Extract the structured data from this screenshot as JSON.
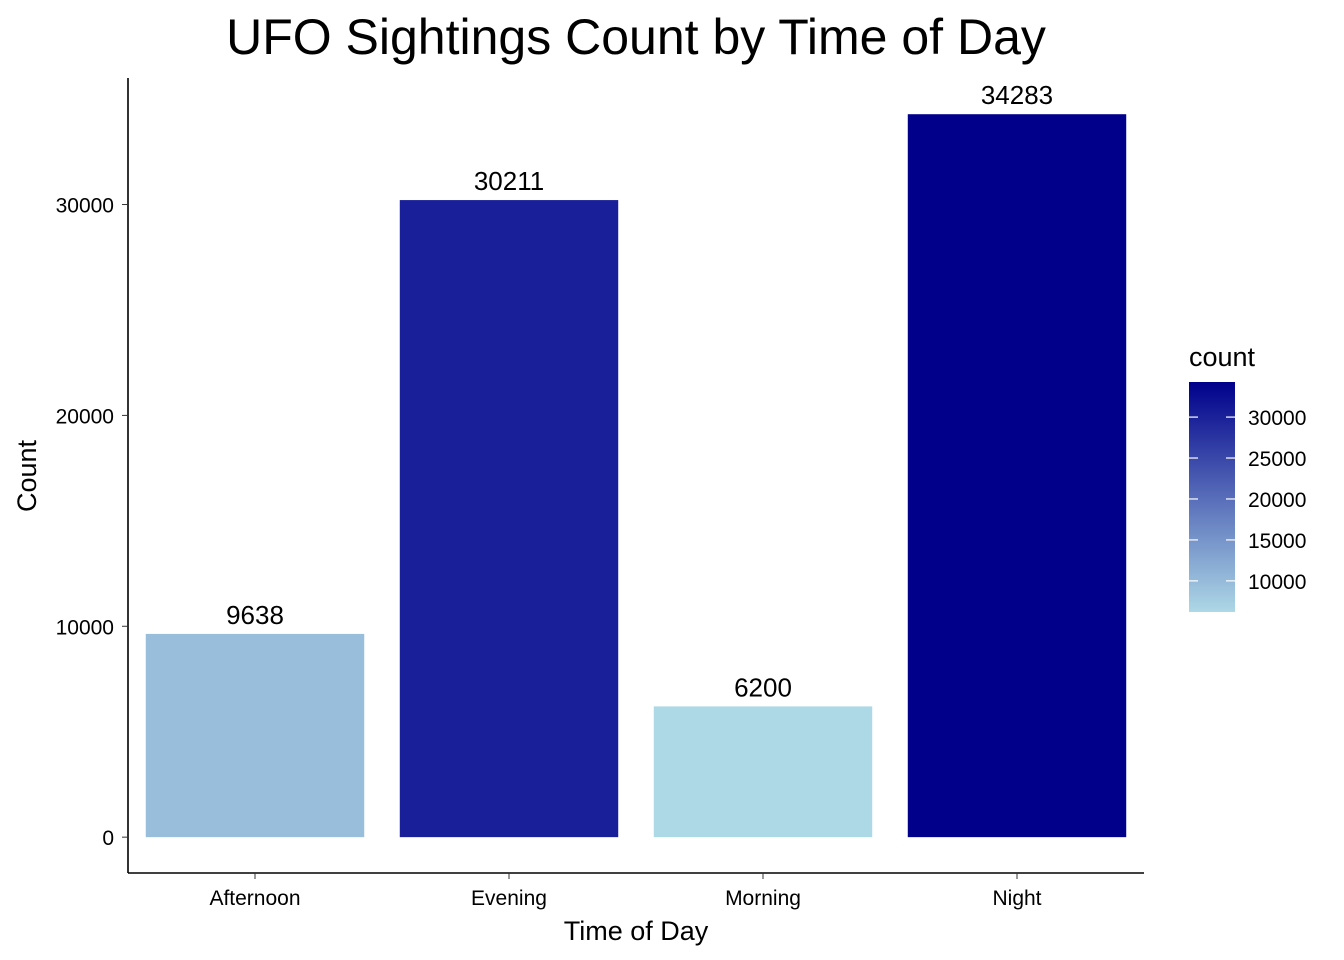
{
  "chart_data": {
    "type": "bar",
    "title": "UFO Sightings Count by Time of Day",
    "xlabel": "Time of Day",
    "ylabel": "Count",
    "categories": [
      "Afternoon",
      "Evening",
      "Morning",
      "Night"
    ],
    "values": [
      9638,
      30211,
      6200,
      34283
    ],
    "data_labels": [
      "9638",
      "30211",
      "6200",
      "34283"
    ],
    "ylim": [
      -1700,
      36000
    ],
    "yticks": [
      0,
      10000,
      20000,
      30000
    ],
    "ytick_labels": [
      "0",
      "10000",
      "20000",
      "30000"
    ],
    "grid": false,
    "legend": {
      "position": "right",
      "title": "count",
      "type": "colorbar",
      "range": [
        6200,
        34283
      ],
      "ticks": [
        10000,
        15000,
        20000,
        25000,
        30000
      ],
      "tick_labels": [
        "10000",
        "15000",
        "20000",
        "25000",
        "30000"
      ]
    },
    "colors": {
      "low": "#add8e6",
      "high": "#00008b"
    }
  }
}
